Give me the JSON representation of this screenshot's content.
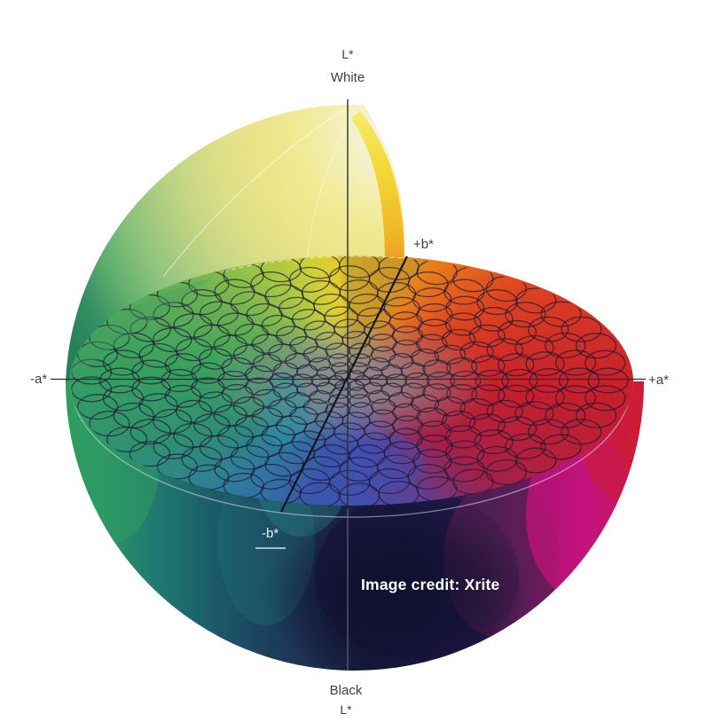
{
  "labels": {
    "l_axis_top": "L*",
    "white_pole": "White",
    "plus_b": "+b*",
    "minus_a": "-a*",
    "plus_a": "+a*",
    "minus_b": "-b*",
    "black_pole": "Black",
    "l_axis_bottom": "L*",
    "credit": "Image credit: Xrite"
  },
  "colors": {
    "label_text": "#3e3e3e",
    "credit_text": "#ffffff",
    "pole_white": "#f8f8f6",
    "yellow": "#e5cb2b",
    "orange": "#e8821c",
    "red_plus_a": "#c81f2b",
    "magenta": "#c6137c",
    "blue_minus_b": "#4150ae",
    "teal": "#2f7b9e",
    "green_minus_a": "#37a05f",
    "navy_black_pole": "#161a39",
    "gray_center": "#8a8a8e"
  }
}
